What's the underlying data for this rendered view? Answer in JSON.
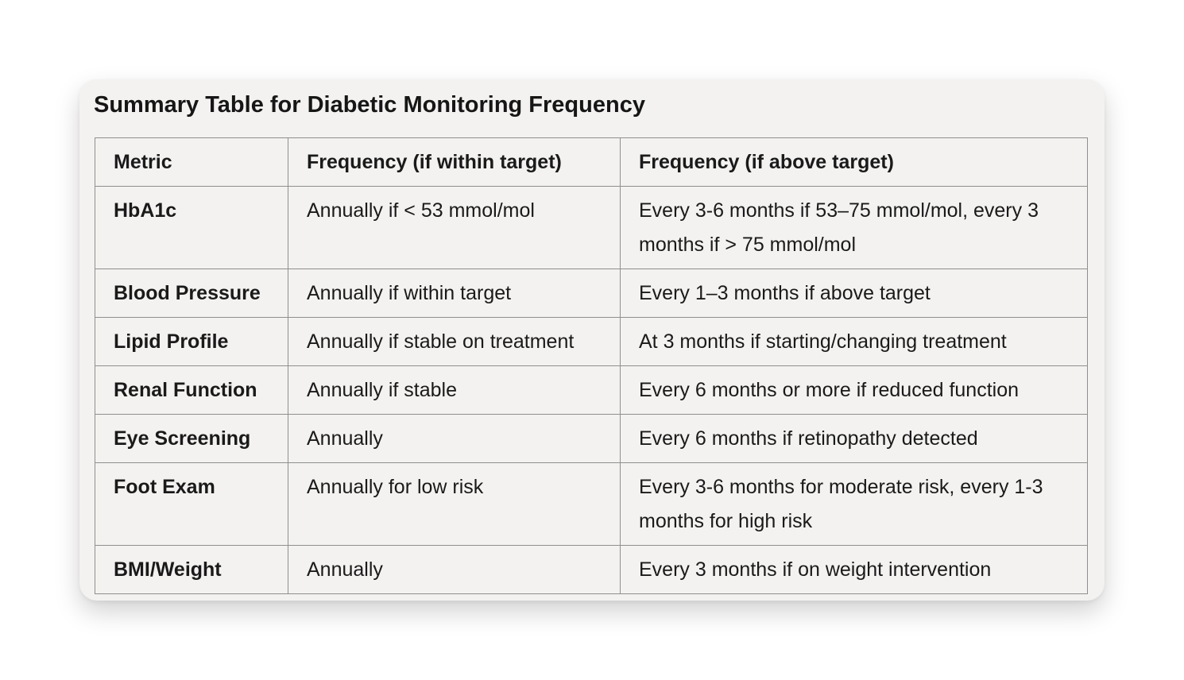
{
  "title": "Summary Table for Diabetic Monitoring Frequency",
  "table": {
    "headers": [
      "Metric",
      "Frequency (if within target)",
      "Frequency (if above target)"
    ],
    "rows": [
      [
        "HbA1c",
        "Annually if < 53 mmol/mol",
        "Every 3-6 months if 53–75 mmol/mol, every 3 months if > 75 mmol/mol"
      ],
      [
        "Blood Pressure",
        "Annually if within target",
        "Every 1–3 months if above target"
      ],
      [
        "Lipid Profile",
        "Annually if stable on treatment",
        "At 3 months if starting/changing treatment"
      ],
      [
        "Renal Function",
        "Annually if stable",
        "Every 6 months or more if reduced function"
      ],
      [
        "Eye Screening",
        "Annually",
        "Every 6 months if retinopathy detected"
      ],
      [
        "Foot Exam",
        "Annually for low risk",
        "Every 3-6 months for moderate risk, every 1-3 months for high risk"
      ],
      [
        "BMI/Weight",
        "Annually",
        "Every 3 months if on weight intervention"
      ]
    ]
  }
}
